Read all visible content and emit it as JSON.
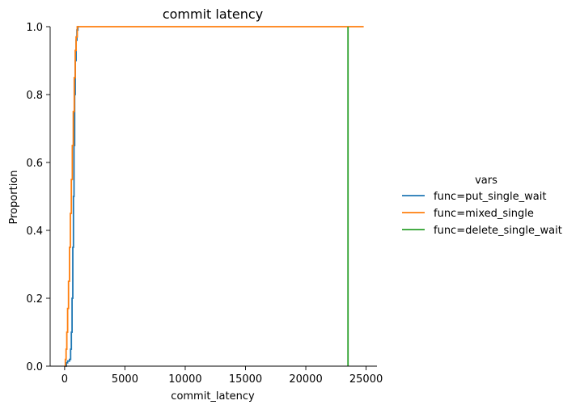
{
  "chart_data": {
    "type": "line",
    "title": "commit latency",
    "xlabel": "commit_latency",
    "ylabel": "Proportion",
    "xlim": [
      -1200,
      25900
    ],
    "ylim": [
      0,
      1
    ],
    "x_ticks": [
      "0",
      "5000",
      "10000",
      "15000",
      "20000",
      "25000"
    ],
    "x_tick_values": [
      0,
      5000,
      10000,
      15000,
      20000,
      25000
    ],
    "y_ticks": [
      "0.0",
      "0.2",
      "0.4",
      "0.6",
      "0.8",
      "1.0"
    ],
    "y_tick_values": [
      0,
      0.2,
      0.4,
      0.6,
      0.8,
      1.0
    ],
    "grid": false,
    "legend": {
      "title": "vars",
      "placement": "right"
    },
    "series": [
      {
        "name": "func=put_single_wait",
        "color": "#1f77b4",
        "x": [
          60,
          150,
          250,
          400,
          500,
          560,
          620,
          680,
          730,
          780,
          830,
          880,
          950,
          1020,
          1100,
          1200
        ],
        "y": [
          0.0,
          0.01,
          0.015,
          0.02,
          0.05,
          0.1,
          0.2,
          0.35,
          0.5,
          0.65,
          0.8,
          0.9,
          0.96,
          0.99,
          1.0,
          1.0
        ]
      },
      {
        "name": "func=mixed_single",
        "color": "#ff7f0e",
        "x": [
          0,
          60,
          120,
          180,
          250,
          320,
          400,
          480,
          560,
          640,
          720,
          800,
          880,
          950,
          1050,
          24800
        ],
        "y": [
          0.0,
          0.02,
          0.05,
          0.1,
          0.17,
          0.25,
          0.35,
          0.45,
          0.55,
          0.65,
          0.75,
          0.85,
          0.93,
          0.97,
          1.0,
          1.0
        ]
      },
      {
        "name": "func=delete_single_wait",
        "color": "#2ca02c",
        "x": [
          23500,
          23500
        ],
        "y": [
          0.0,
          1.0
        ]
      }
    ]
  }
}
